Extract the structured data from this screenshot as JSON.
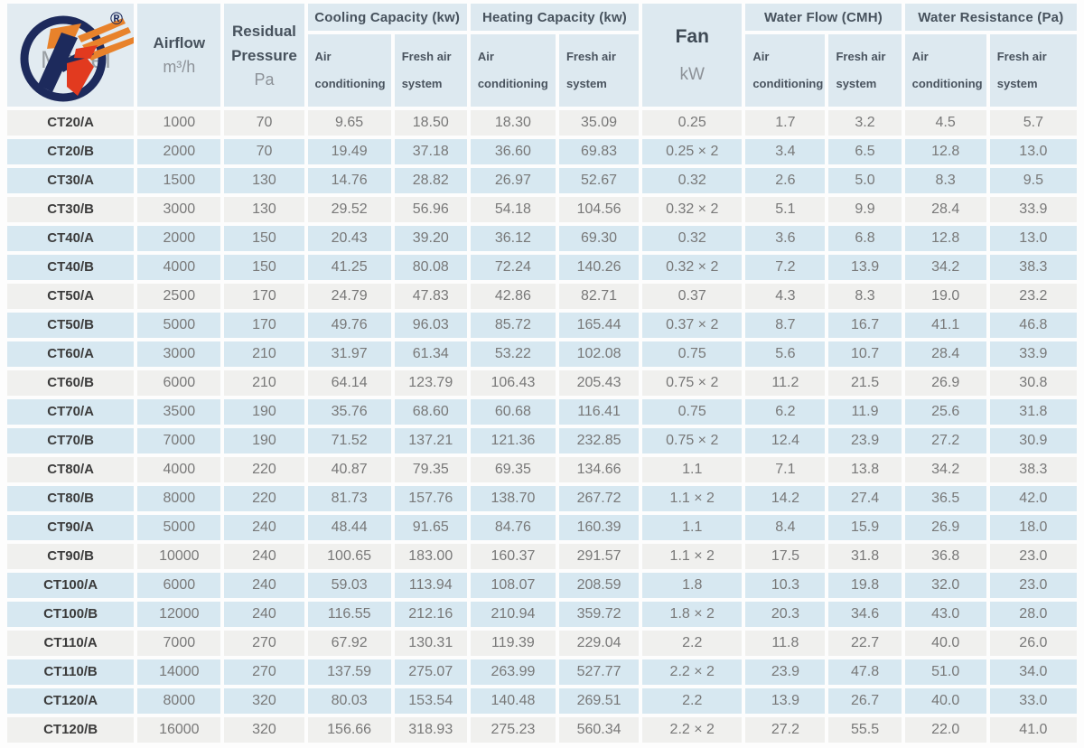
{
  "header": {
    "model_label": "Model",
    "registered_mark": "®",
    "airflow": {
      "title": "Airflow",
      "unit": "m³/h"
    },
    "residual_pressure": {
      "title_line1": "Residual",
      "title_line2": "Pressure",
      "unit": "Pa"
    },
    "cooling_capacity": {
      "title": "Cooling Capacity (kw)"
    },
    "heating_capacity": {
      "title": "Heating Capacity (kw)"
    },
    "fan": {
      "title": "Fan",
      "unit": "kW"
    },
    "water_flow": {
      "title": "Water Flow (CMH)"
    },
    "water_resistance": {
      "title": "Water Resistance (Pa)"
    },
    "sub": {
      "air_line1": "Air",
      "air_line2": "conditioning",
      "fresh_line1": "Fresh air",
      "fresh_line2": "system"
    }
  },
  "colors": {
    "header_bg": "#dde9f0",
    "row_blue": "#d7e8f1",
    "row_light": "#f0f0ee",
    "value_text": "#787878",
    "header_text": "#47525d",
    "logo_navy": "#1d2a5c",
    "logo_orange": "#e8822b",
    "logo_red": "#e23a1f"
  },
  "rows": [
    [
      "CT20/A",
      "1000",
      "70",
      "9.65",
      "18.50",
      "18.30",
      "35.09",
      "0.25",
      "1.7",
      "3.2",
      "4.5",
      "5.7"
    ],
    [
      "CT20/B",
      "2000",
      "70",
      "19.49",
      "37.18",
      "36.60",
      "69.83",
      "0.25 × 2",
      "3.4",
      "6.5",
      "12.8",
      "13.0"
    ],
    [
      "CT30/A",
      "1500",
      "130",
      "14.76",
      "28.82",
      "26.97",
      "52.67",
      "0.32",
      "2.6",
      "5.0",
      "8.3",
      "9.5"
    ],
    [
      "CT30/B",
      "3000",
      "130",
      "29.52",
      "56.96",
      "54.18",
      "104.56",
      "0.32 × 2",
      "5.1",
      "9.9",
      "28.4",
      "33.9"
    ],
    [
      "CT40/A",
      "2000",
      "150",
      "20.43",
      "39.20",
      "36.12",
      "69.30",
      "0.32",
      "3.6",
      "6.8",
      "12.8",
      "13.0"
    ],
    [
      "CT40/B",
      "4000",
      "150",
      "41.25",
      "80.08",
      "72.24",
      "140.26",
      "0.32 × 2",
      "7.2",
      "13.9",
      "34.2",
      "38.3"
    ],
    [
      "CT50/A",
      "2500",
      "170",
      "24.79",
      "47.83",
      "42.86",
      "82.71",
      "0.37",
      "4.3",
      "8.3",
      "19.0",
      "23.2"
    ],
    [
      "CT50/B",
      "5000",
      "170",
      "49.76",
      "96.03",
      "85.72",
      "165.44",
      "0.37 × 2",
      "8.7",
      "16.7",
      "41.1",
      "46.8"
    ],
    [
      "CT60/A",
      "3000",
      "210",
      "31.97",
      "61.34",
      "53.22",
      "102.08",
      "0.75",
      "5.6",
      "10.7",
      "28.4",
      "33.9"
    ],
    [
      "CT60/B",
      "6000",
      "210",
      "64.14",
      "123.79",
      "106.43",
      "205.43",
      "0.75 × 2",
      "11.2",
      "21.5",
      "26.9",
      "30.8"
    ],
    [
      "CT70/A",
      "3500",
      "190",
      "35.76",
      "68.60",
      "60.68",
      "116.41",
      "0.75",
      "6.2",
      "11.9",
      "25.6",
      "31.8"
    ],
    [
      "CT70/B",
      "7000",
      "190",
      "71.52",
      "137.21",
      "121.36",
      "232.85",
      "0.75 × 2",
      "12.4",
      "23.9",
      "27.2",
      "30.9"
    ],
    [
      "CT80/A",
      "4000",
      "220",
      "40.87",
      "79.35",
      "69.35",
      "134.66",
      "1.1",
      "7.1",
      "13.8",
      "34.2",
      "38.3"
    ],
    [
      "CT80/B",
      "8000",
      "220",
      "81.73",
      "157.76",
      "138.70",
      "267.72",
      "1.1 × 2",
      "14.2",
      "27.4",
      "36.5",
      "42.0"
    ],
    [
      "CT90/A",
      "5000",
      "240",
      "48.44",
      "91.65",
      "84.76",
      "160.39",
      "1.1",
      "8.4",
      "15.9",
      "26.9",
      "18.0"
    ],
    [
      "CT90/B",
      "10000",
      "240",
      "100.65",
      "183.00",
      "160.37",
      "291.57",
      "1.1 × 2",
      "17.5",
      "31.8",
      "36.8",
      "23.0"
    ],
    [
      "CT100/A",
      "6000",
      "240",
      "59.03",
      "113.94",
      "108.07",
      "208.59",
      "1.8",
      "10.3",
      "19.8",
      "32.0",
      "23.0"
    ],
    [
      "CT100/B",
      "12000",
      "240",
      "116.55",
      "212.16",
      "210.94",
      "359.72",
      "1.8 × 2",
      "20.3",
      "34.6",
      "43.0",
      "28.0"
    ],
    [
      "CT110/A",
      "7000",
      "270",
      "67.92",
      "130.31",
      "119.39",
      "229.04",
      "2.2",
      "11.8",
      "22.7",
      "40.0",
      "26.0"
    ],
    [
      "CT110/B",
      "14000",
      "270",
      "137.59",
      "275.07",
      "263.99",
      "527.77",
      "2.2 × 2",
      "23.9",
      "47.8",
      "51.0",
      "34.0"
    ],
    [
      "CT120/A",
      "8000",
      "320",
      "80.03",
      "153.54",
      "140.48",
      "269.51",
      "2.2",
      "13.9",
      "26.7",
      "40.0",
      "33.0"
    ],
    [
      "CT120/B",
      "16000",
      "320",
      "156.66",
      "318.93",
      "275.23",
      "560.34",
      "2.2 × 2",
      "27.2",
      "55.5",
      "22.0",
      "41.0"
    ]
  ]
}
